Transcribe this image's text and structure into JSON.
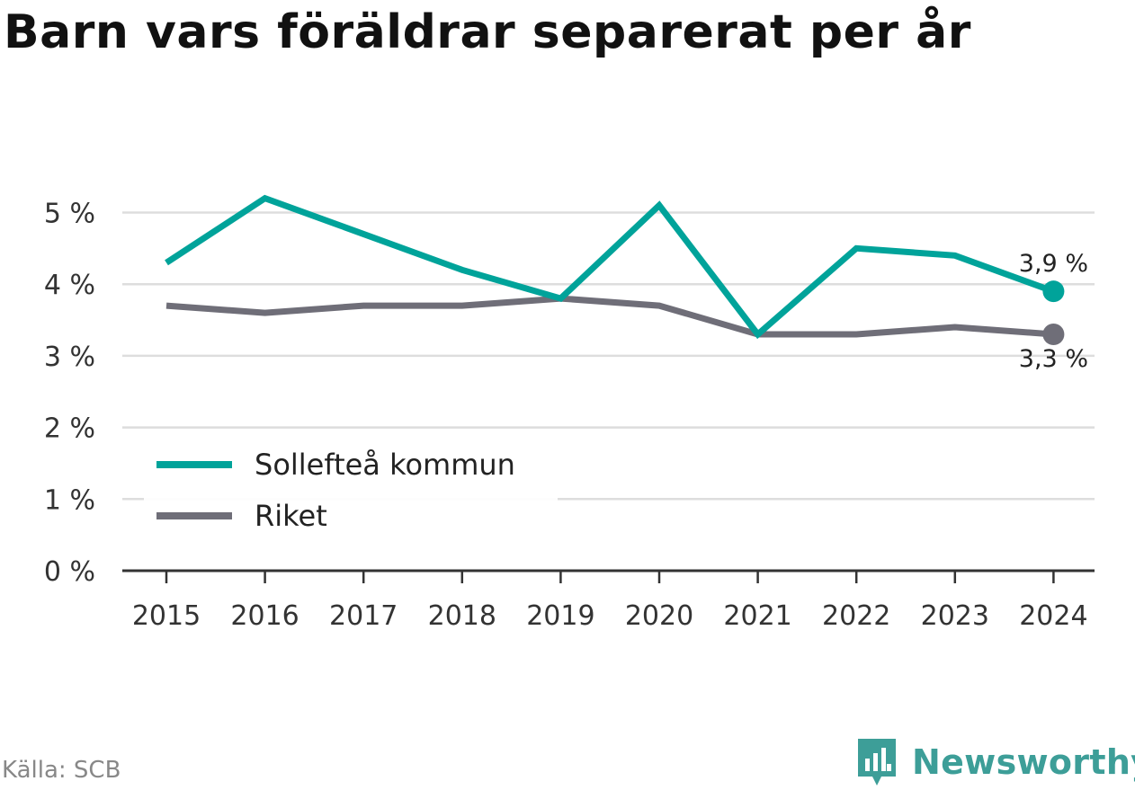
{
  "title": "Barn vars föräldrar separerat per år",
  "source": "Källa: SCB",
  "brand": "Newsworthy",
  "colors": {
    "kommun": "#00a39a",
    "riket": "#6f6e78",
    "grid": "#dddddd",
    "axis": "#333333",
    "brand": "#3d9e98"
  },
  "chart_data": {
    "type": "line",
    "x": [
      "2015",
      "2016",
      "2017",
      "2018",
      "2019",
      "2020",
      "2021",
      "2022",
      "2023",
      "2024"
    ],
    "series": [
      {
        "name": "Sollefteå kommun",
        "values": [
          4.3,
          5.2,
          4.7,
          4.2,
          3.8,
          5.1,
          3.3,
          4.5,
          4.4,
          3.9
        ],
        "color": "#00a39a",
        "end_label": "3,9 %"
      },
      {
        "name": "Riket",
        "values": [
          3.7,
          3.6,
          3.7,
          3.7,
          3.8,
          3.7,
          3.3,
          3.3,
          3.4,
          3.3
        ],
        "color": "#6f6e78",
        "end_label": "3,3 %"
      }
    ],
    "y_ticks": [
      0,
      1,
      2,
      3,
      4,
      5
    ],
    "y_tick_labels": [
      "0 %",
      "1 %",
      "2 %",
      "3 %",
      "4 %",
      "5 %"
    ],
    "ylim": [
      0,
      5.3
    ],
    "grid": true,
    "legend": "bottom-left"
  }
}
